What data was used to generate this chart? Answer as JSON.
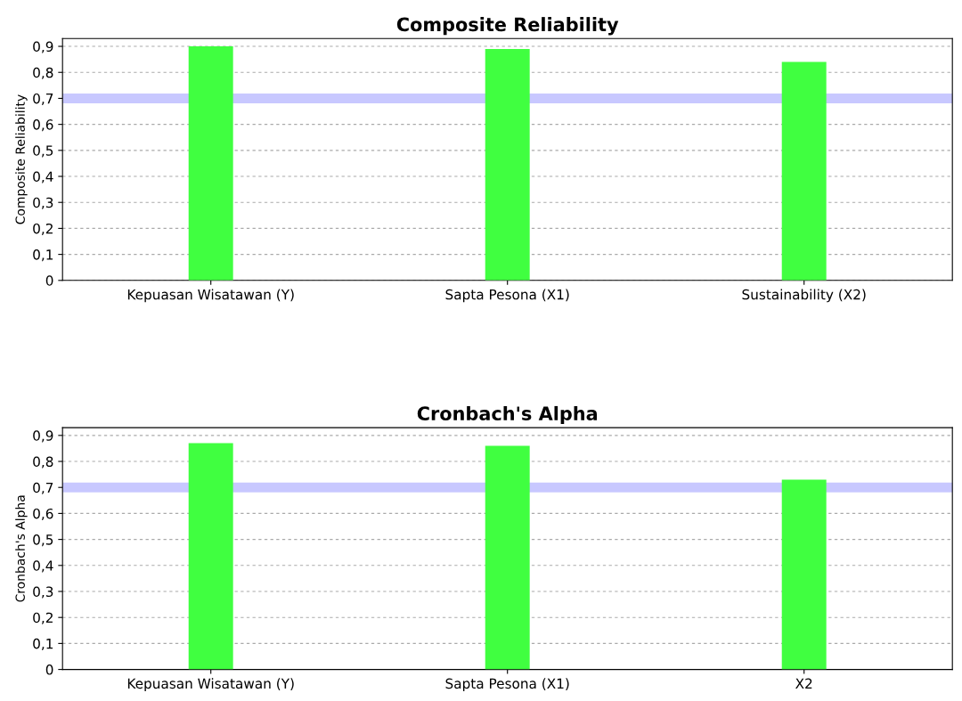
{
  "chart_data": [
    {
      "type": "bar",
      "title": "Composite Reliability",
      "ylabel": "Composite Reliability",
      "categories": [
        "Kepuasan Wisatawan (Y)",
        "Sapta Pesona (X1)",
        "Sustainability (X2)"
      ],
      "values": [
        0.9,
        0.89,
        0.84
      ],
      "color": "#40ff40",
      "ylim": [
        0,
        0.93
      ],
      "yticks": [
        {
          "value": 0,
          "label": "0"
        },
        {
          "value": 0.1,
          "label": "0,1"
        },
        {
          "value": 0.2,
          "label": "0,2"
        },
        {
          "value": 0.3,
          "label": "0,3"
        },
        {
          "value": 0.4,
          "label": "0,4"
        },
        {
          "value": 0.5,
          "label": "0,5"
        },
        {
          "value": 0.6,
          "label": "0,6"
        },
        {
          "value": 0.7,
          "label": "0,7"
        },
        {
          "value": 0.8,
          "label": "0,8"
        },
        {
          "value": 0.9,
          "label": "0,9"
        }
      ],
      "grid": "y",
      "ref_lines": [
        {
          "axis": "y",
          "value": 0.7,
          "color": "#c8c8ff"
        }
      ]
    },
    {
      "type": "bar",
      "title": "Cronbach's Alpha",
      "ylabel": "Cronbach's Alpha",
      "categories": [
        "Kepuasan Wisatawan (Y)",
        "Sapta Pesona (X1)",
        "X2"
      ],
      "values": [
        0.87,
        0.86,
        0.73
      ],
      "color": "#40ff40",
      "ylim": [
        0,
        0.93
      ],
      "yticks": [
        {
          "value": 0,
          "label": "0"
        },
        {
          "value": 0.1,
          "label": "0,1"
        },
        {
          "value": 0.2,
          "label": "0,2"
        },
        {
          "value": 0.3,
          "label": "0,3"
        },
        {
          "value": 0.4,
          "label": "0,4"
        },
        {
          "value": 0.5,
          "label": "0,5"
        },
        {
          "value": 0.6,
          "label": "0,6"
        },
        {
          "value": 0.7,
          "label": "0,7"
        },
        {
          "value": 0.8,
          "label": "0,8"
        },
        {
          "value": 0.9,
          "label": "0,9"
        }
      ],
      "grid": "y",
      "ref_lines": [
        {
          "axis": "y",
          "value": 0.7,
          "color": "#c8c8ff"
        }
      ]
    }
  ]
}
